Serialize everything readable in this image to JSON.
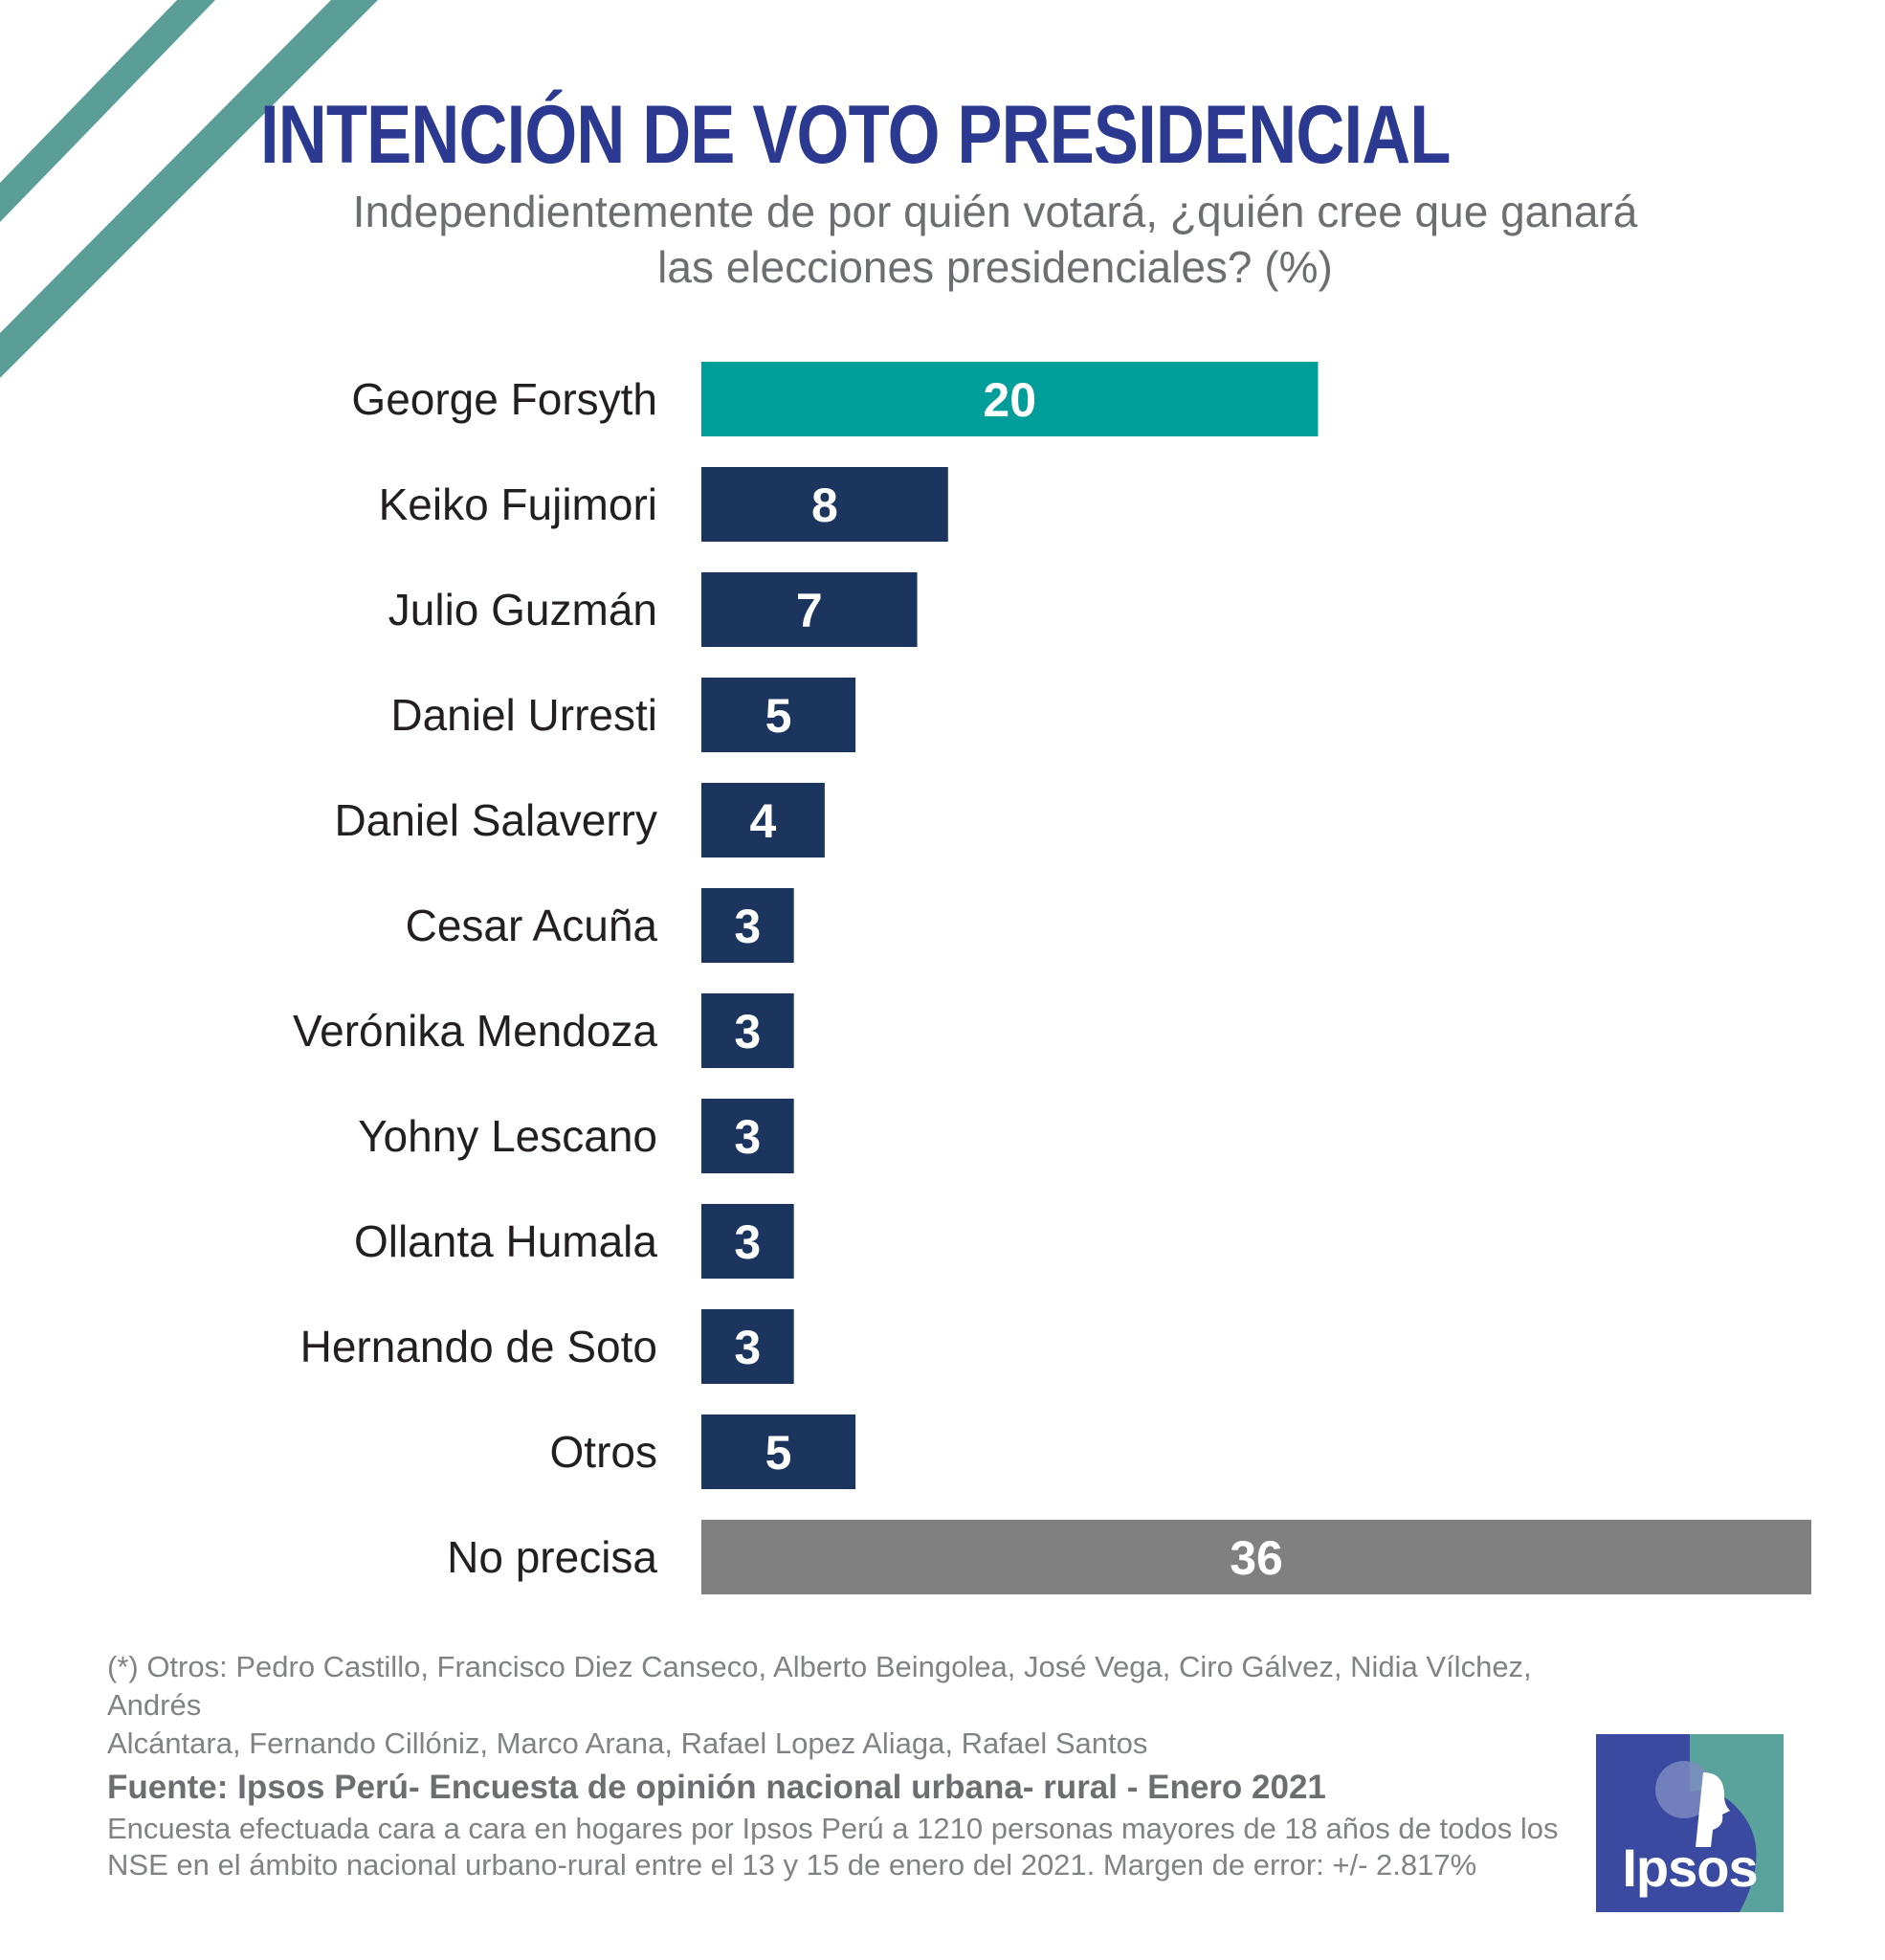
{
  "header": {
    "title": "INTENCIÓN DE VOTO PRESIDENCIAL",
    "subtitle_line1": "Independientemente de por quién votará, ¿quién cree que ganará",
    "subtitle_line2": "las elecciones presidenciales? (%)"
  },
  "colors": {
    "title": "#2b3990",
    "teal": "#009e9a",
    "navy": "#1c355e",
    "gray": "#808080",
    "stripes": "#5b9e98"
  },
  "chart_data": {
    "type": "bar",
    "orientation": "horizontal",
    "title": "INTENCIÓN DE VOTO PRESIDENCIAL",
    "unit": "%",
    "xlim": [
      0,
      36
    ],
    "categories": [
      "George Forsyth",
      "Keiko Fujimori",
      "Julio Guzmán",
      "Daniel Urresti",
      "Daniel Salaverry",
      "Cesar Acuña",
      "Verónika Mendoza",
      "Yohny Lescano",
      "Ollanta Humala",
      "Hernando de Soto",
      "Otros",
      "No precisa"
    ],
    "values": [
      20,
      8,
      7,
      5,
      4,
      3,
      3,
      3,
      3,
      3,
      5,
      36
    ],
    "bar_colors": [
      "teal",
      "navy",
      "navy",
      "navy",
      "navy",
      "navy",
      "navy",
      "navy",
      "navy",
      "navy",
      "navy",
      "gray"
    ]
  },
  "footnote": {
    "line1": "(*) Otros:  Pedro Castillo, Francisco Diez Canseco, Alberto Beingolea, José Vega, Ciro Gálvez, Nidia Vílchez, Andrés",
    "line2": "Alcántara, Fernando Cillóniz, Marco Arana, Rafael Lopez Aliaga, Rafael Santos"
  },
  "source": {
    "title": "Fuente: Ipsos Perú- Encuesta de opinión nacional urbana- rural - Enero 2021",
    "line1": "Encuesta efectuada cara a cara en hogares por Ipsos Perú a 1210 personas mayores de 18 años de todos los",
    "line2": "NSE en el ámbito nacional urbano-rural entre el 13 y 15 de enero del 2021. Margen de error:  +/- 2.817%"
  },
  "logo": {
    "text": "Ipsos"
  }
}
